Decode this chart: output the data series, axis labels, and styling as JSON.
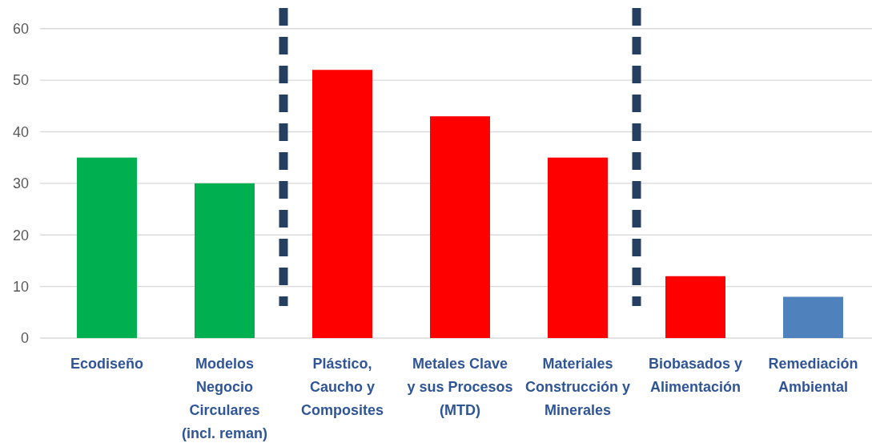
{
  "chart_data": {
    "type": "bar",
    "categories": [
      "Ecodiseño",
      "Modelos Negocio Circulares (incl. reman)",
      "Plástico, Caucho y Composites",
      "Metales Clave y sus Procesos (MTD)",
      "Materiales Construcción y Minerales",
      "Biobasados y Alimentación",
      "Remediación Ambiental"
    ],
    "values": [
      35,
      30,
      52,
      43,
      35,
      12,
      8
    ],
    "colors": [
      "#00b050",
      "#00b050",
      "#ff0000",
      "#ff0000",
      "#ff0000",
      "#ff0000",
      "#4f81bd"
    ],
    "ylim": [
      0,
      64
    ],
    "yticks": [
      0,
      10,
      20,
      30,
      40,
      50,
      60
    ],
    "grid": "y"
  }
}
